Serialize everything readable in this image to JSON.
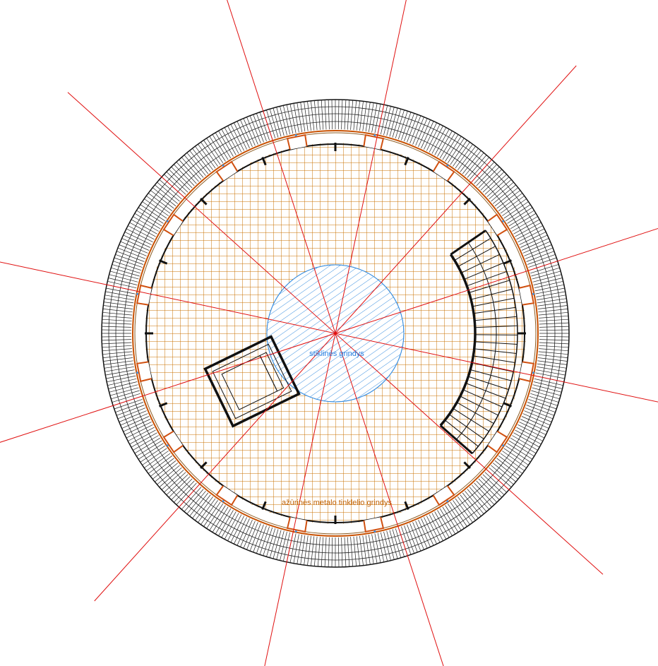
{
  "labels": {
    "glass_floor": "stiklinės grindys",
    "mesh_floor": "ažūrinės metalo tinklelio grindys"
  }
}
